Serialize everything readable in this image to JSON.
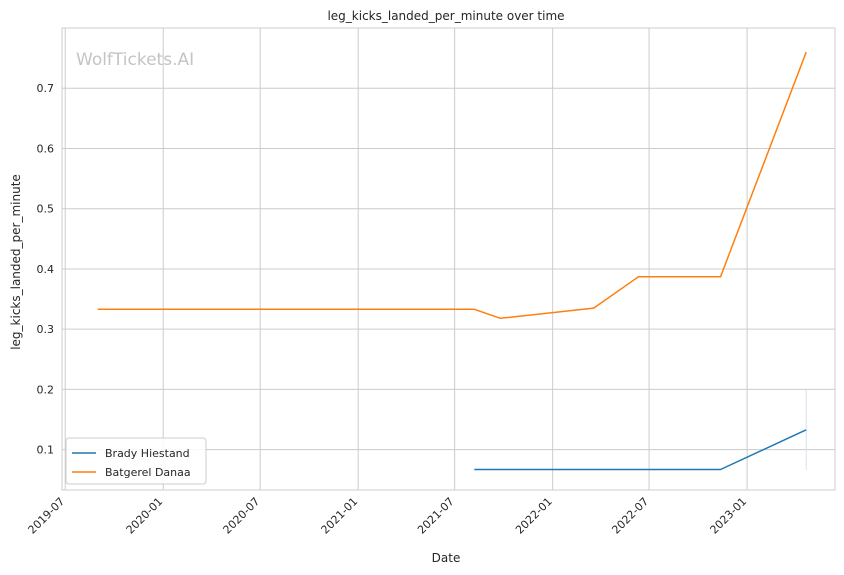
{
  "chart_data": {
    "type": "line",
    "title": "leg_kicks_landed_per_minute over time",
    "xlabel": "Date",
    "ylabel": "leg_kicks_landed_per_minute",
    "watermark": "WolfTickets.AI",
    "xlim": [
      "2019-06-25",
      "2023-06-15"
    ],
    "ylim": [
      0.033,
      0.8
    ],
    "x_ticks": [
      "2019-07",
      "2020-01",
      "2020-07",
      "2021-01",
      "2021-07",
      "2022-01",
      "2022-07",
      "2023-01"
    ],
    "y_ticks": [
      0.1,
      0.2,
      0.3,
      0.4,
      0.5,
      0.6,
      0.7
    ],
    "grid": true,
    "legend_position": "lower-left",
    "series": [
      {
        "name": "Brady Hiestand",
        "color": "#1f77b4",
        "points": [
          {
            "x": "2021-08-07",
            "y": 0.067
          },
          {
            "x": "2022-11-12",
            "y": 0.067
          },
          {
            "x": "2023-04-22",
            "y": 0.133
          }
        ]
      },
      {
        "name": "Batgerel Danaa",
        "color": "#ff7f0e",
        "points": [
          {
            "x": "2019-08-31",
            "y": 0.333
          },
          {
            "x": "2021-08-07",
            "y": 0.333
          },
          {
            "x": "2021-09-25",
            "y": 0.318
          },
          {
            "x": "2022-03-19",
            "y": 0.335
          },
          {
            "x": "2022-06-11",
            "y": 0.387
          },
          {
            "x": "2022-11-12",
            "y": 0.387
          },
          {
            "x": "2023-04-22",
            "y": 0.76
          }
        ]
      }
    ],
    "error_bar": {
      "x": "2023-04-22",
      "y_low": 0.066,
      "y_high": 0.2
    }
  }
}
